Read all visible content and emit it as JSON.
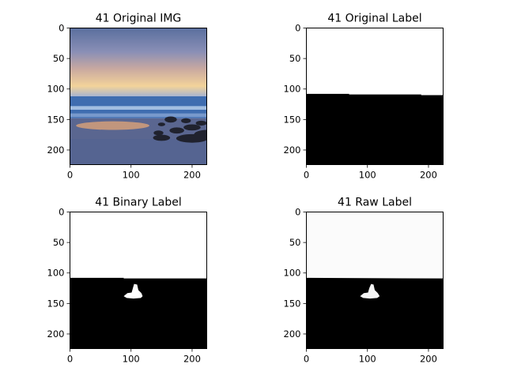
{
  "chart_data": [
    {
      "type": "image",
      "title": "41 Original IMG",
      "xlim": [
        0,
        224
      ],
      "ylim": [
        224,
        0
      ],
      "xticks": [
        0,
        100,
        200
      ],
      "yticks": [
        0,
        50,
        100,
        150,
        200
      ],
      "content": "photo-beach-sunset",
      "colors": {
        "sky_top": "#5a6f9e",
        "sky_mid": "#c9a9a0",
        "horizon_glow": "#f3d39a",
        "sea": "#3f6db0",
        "foam": "#bcd2ee",
        "sand": "#5a6690",
        "rocks": "#20222e"
      }
    },
    {
      "type": "image",
      "title": "41 Original Label",
      "xlim": [
        0,
        224
      ],
      "ylim": [
        224,
        0
      ],
      "xticks": [
        0,
        100,
        200
      ],
      "yticks": [
        0,
        50,
        100,
        150,
        200
      ],
      "content": "mask",
      "boundary": [
        [
          0,
          108
        ],
        [
          70,
          108
        ],
        [
          70,
          109
        ],
        [
          188,
          109
        ],
        [
          188,
          110
        ],
        [
          224,
          110
        ]
      ],
      "colors": {
        "above": "#ffffff",
        "below": "#000000"
      }
    },
    {
      "type": "image",
      "title": "41 Binary Label",
      "xlim": [
        0,
        224
      ],
      "ylim": [
        224,
        0
      ],
      "xticks": [
        0,
        100,
        200
      ],
      "yticks": [
        0,
        50,
        100,
        150,
        200
      ],
      "content": "mask",
      "boundary": [
        [
          0,
          108
        ],
        [
          88,
          108
        ],
        [
          88,
          109
        ],
        [
          224,
          109
        ]
      ],
      "blob": [
        [
          88,
          138
        ],
        [
          94,
          133
        ],
        [
          101,
          132
        ],
        [
          103,
          125
        ],
        [
          105,
          118
        ],
        [
          110,
          119
        ],
        [
          112,
          128
        ],
        [
          117,
          133
        ],
        [
          119,
          138
        ],
        [
          116,
          141
        ],
        [
          104,
          142
        ],
        [
          93,
          141
        ]
      ],
      "colors": {
        "above": "#ffffff",
        "below": "#000000",
        "blob": "#ffffff"
      }
    },
    {
      "type": "image",
      "title": "41 Raw Label",
      "xlim": [
        0,
        224
      ],
      "ylim": [
        224,
        0
      ],
      "xticks": [
        0,
        100,
        200
      ],
      "yticks": [
        0,
        50,
        100,
        150,
        200
      ],
      "content": "mask",
      "boundary": [
        [
          0,
          108
        ],
        [
          224,
          109
        ]
      ],
      "blob": [
        [
          88,
          138
        ],
        [
          94,
          133
        ],
        [
          101,
          132
        ],
        [
          103,
          125
        ],
        [
          106,
          118
        ],
        [
          110,
          119
        ],
        [
          112,
          128
        ],
        [
          117,
          133
        ],
        [
          120,
          138
        ],
        [
          116,
          141
        ],
        [
          104,
          142
        ],
        [
          93,
          141
        ]
      ],
      "colors": {
        "above": "#fbfbfb",
        "below": "#000000",
        "blob": "#f4f4f4"
      }
    }
  ]
}
